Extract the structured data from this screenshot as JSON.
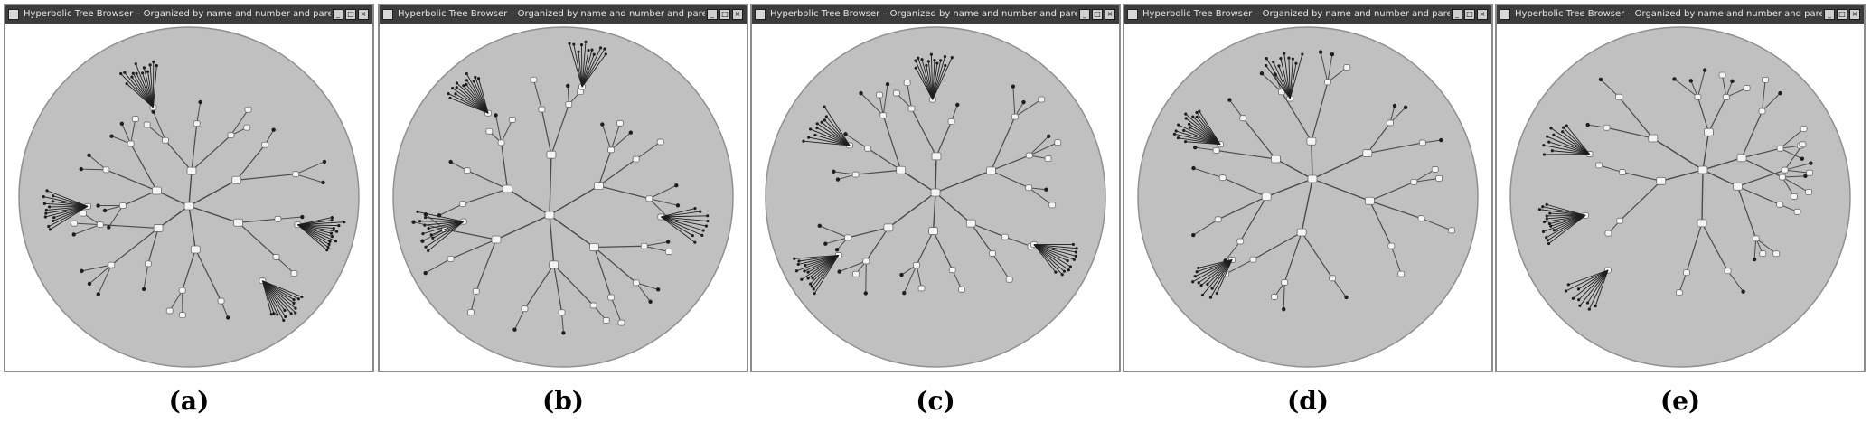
{
  "window_title": "Hyperbolic Tree Browser – Organized by name and number and parent",
  "title_buttons": [
    "_",
    "□",
    "×"
  ],
  "colors": {
    "titlebar": "#3c3c3c",
    "disk": "#c0c0c0",
    "disk_edge": "#909090",
    "edge": "#4a4a4a",
    "node": "#f4f4f4",
    "leaf": "#1e1e1e"
  },
  "panels": [
    {
      "caption": "(a)"
    },
    {
      "caption": "(b)"
    },
    {
      "caption": "(c)"
    },
    {
      "caption": "(d)"
    },
    {
      "caption": "(e)"
    }
  ]
}
